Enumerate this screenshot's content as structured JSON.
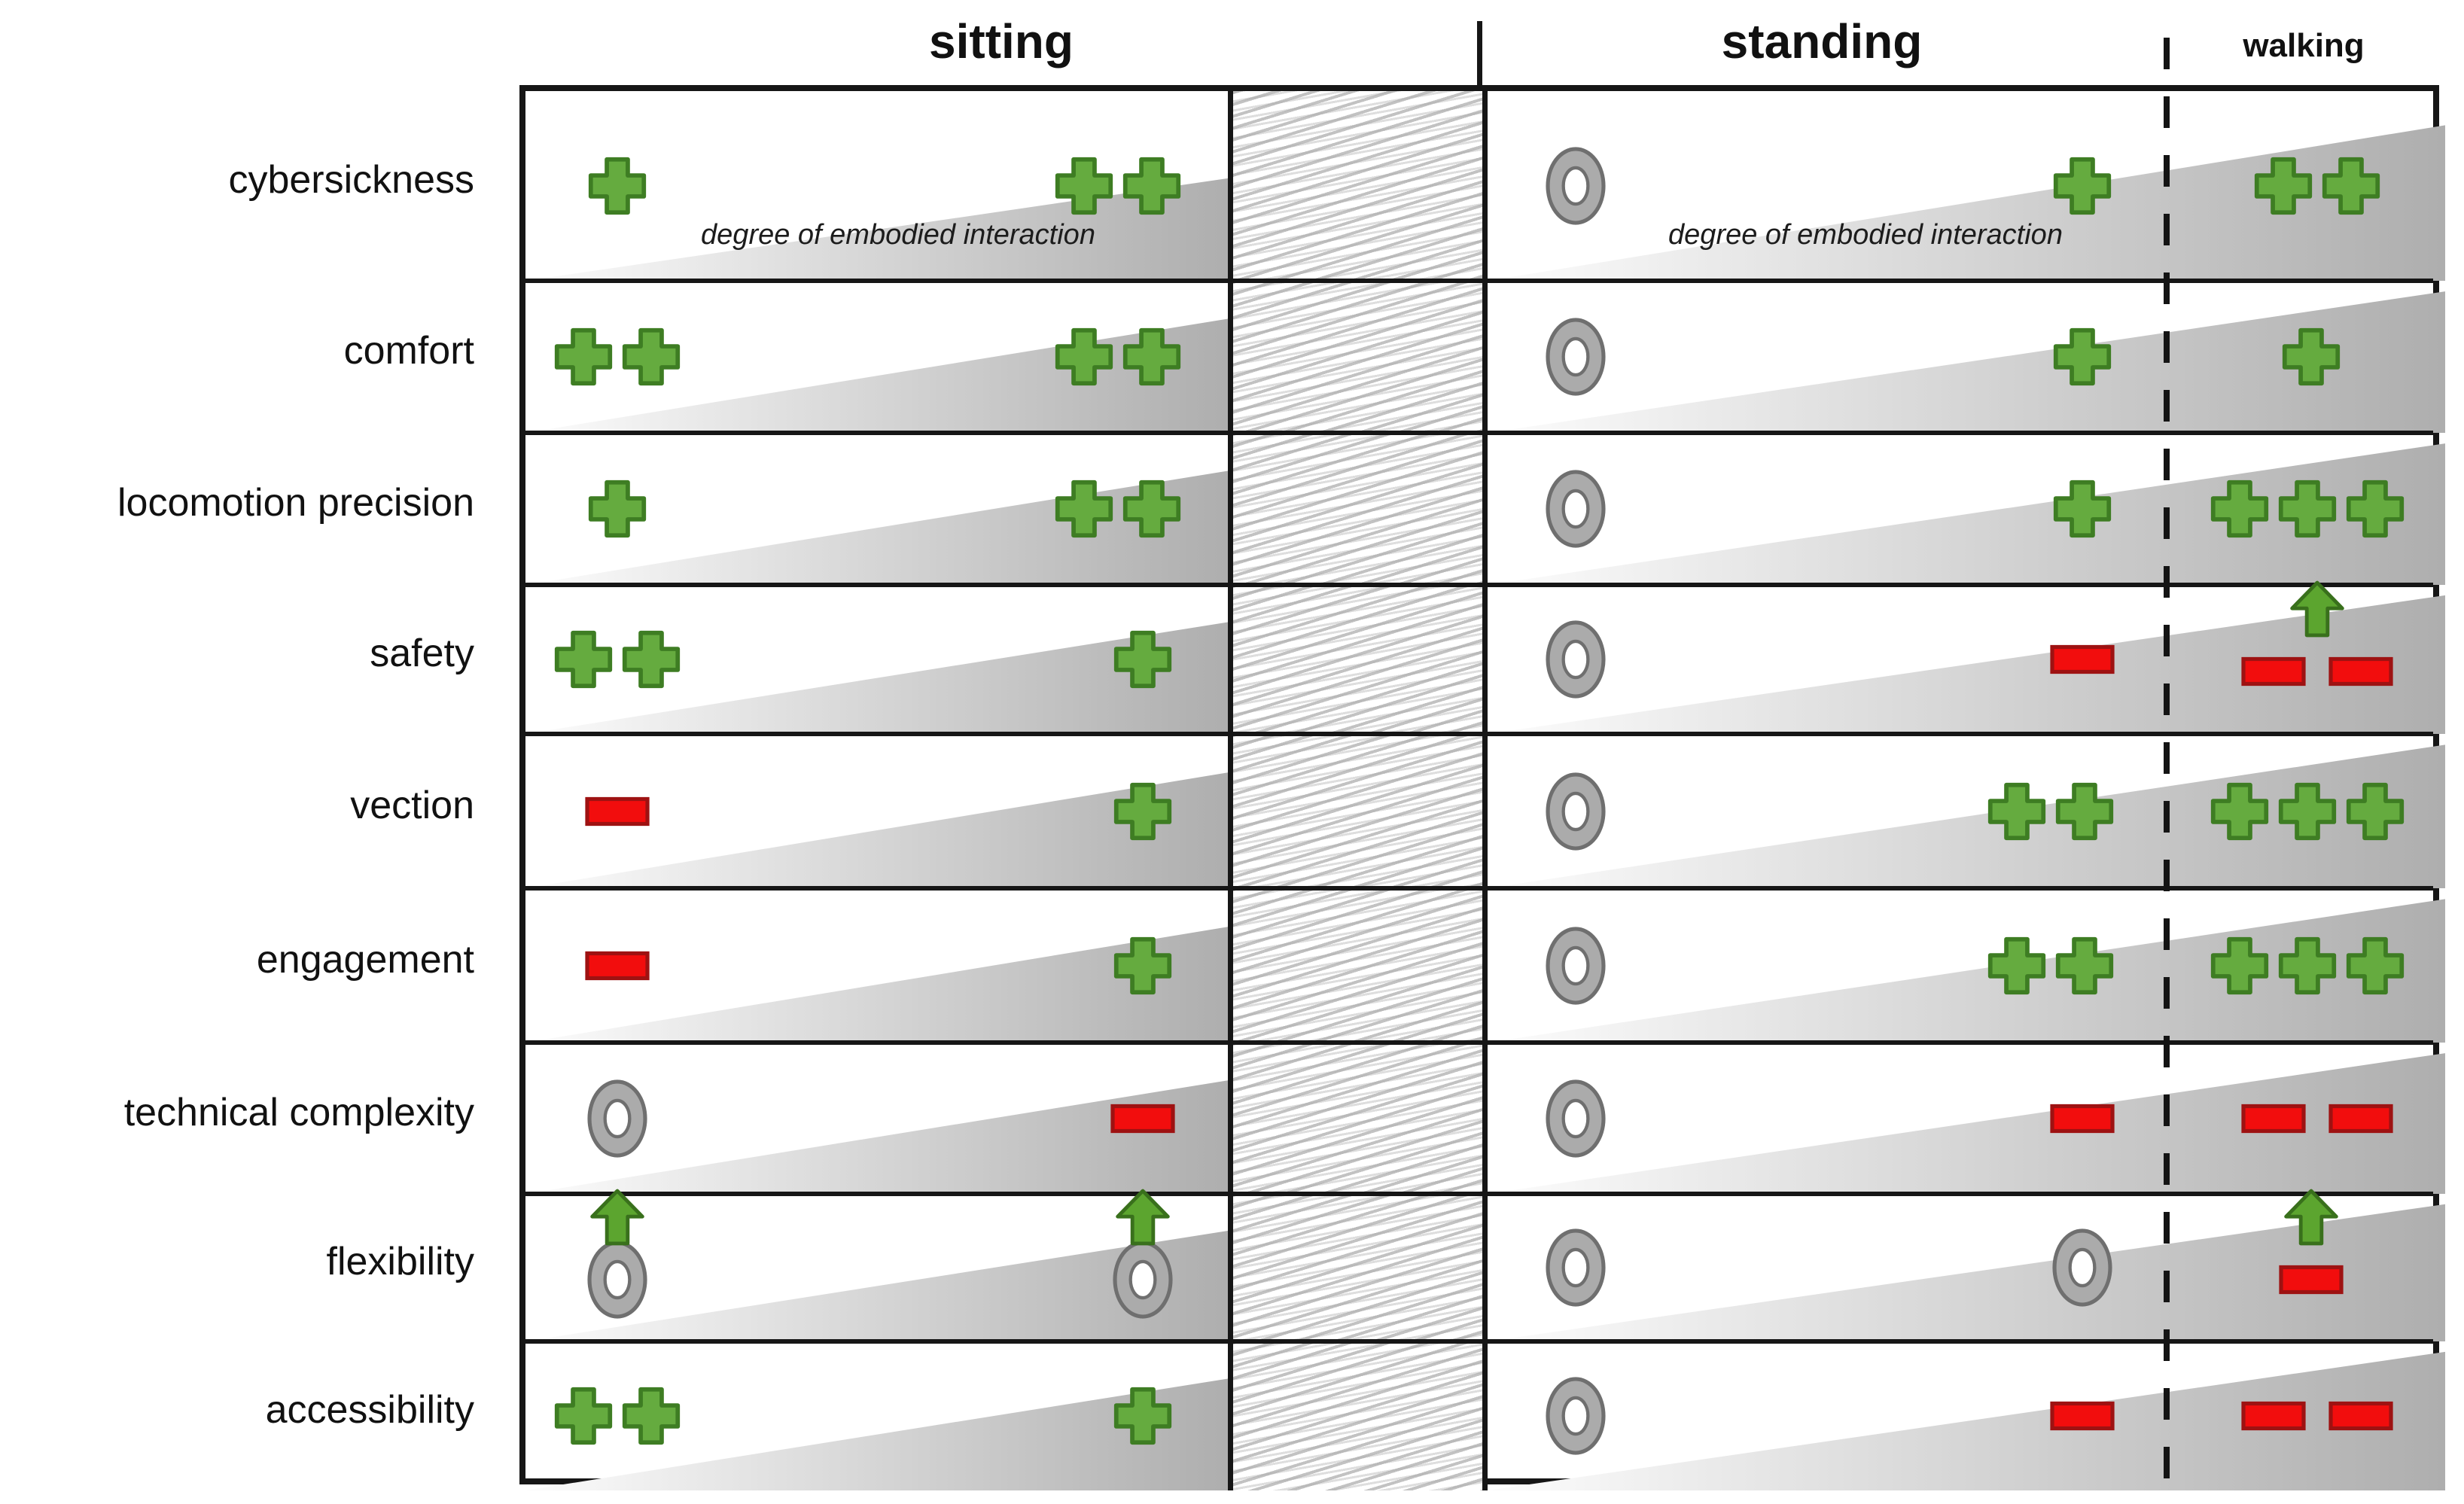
{
  "title_row": {
    "sitting": "sitting",
    "standing": "standing",
    "walking": "walking"
  },
  "axis_note": "degree of embodied interaction",
  "colors": {
    "plus_fill": "#65ab3f",
    "plus_stroke": "#3e7d23",
    "minus_fill": "#f20d0d",
    "minus_stroke": "#9e1212",
    "neutral_fill": "#ababab",
    "neutral_stroke": "#6f6f6f",
    "arrow_fill": "#5ca52f",
    "arrow_stroke": "#39701c",
    "wedge_dark": "#aeaeae",
    "grid": "#161616"
  },
  "rows": [
    {
      "label": "cybersickness",
      "show_axis_note": true,
      "sitting_left": {
        "items": [
          "plus"
        ]
      },
      "sitting_right": {
        "items": [
          "plus",
          "plus"
        ]
      },
      "standing_left": {
        "items": [
          "neutral"
        ]
      },
      "standing_mid": {
        "items": [
          "plus"
        ]
      },
      "walking": {
        "items": [
          "plus",
          "plus"
        ]
      }
    },
    {
      "label": "comfort",
      "sitting_left": {
        "items": [
          "plus",
          "plus"
        ]
      },
      "sitting_right": {
        "items": [
          "plus",
          "plus"
        ]
      },
      "standing_left": {
        "items": [
          "neutral"
        ]
      },
      "standing_mid": {
        "items": [
          "plus"
        ]
      },
      "walking": {
        "items": [
          "plus"
        ]
      }
    },
    {
      "label": "locomotion precision",
      "sitting_left": {
        "items": [
          "plus"
        ]
      },
      "sitting_right": {
        "items": [
          "plus",
          "plus"
        ]
      },
      "standing_left": {
        "items": [
          "neutral"
        ]
      },
      "standing_mid": {
        "items": [
          "plus"
        ]
      },
      "walking": {
        "items": [
          "plus",
          "plus",
          "plus"
        ]
      }
    },
    {
      "label": "safety",
      "sitting_left": {
        "items": [
          "plus",
          "plus"
        ]
      },
      "sitting_right": {
        "items": [
          "plus"
        ]
      },
      "standing_left": {
        "items": [
          "neutral"
        ]
      },
      "standing_mid": {
        "items": [
          "minus"
        ]
      },
      "walking": {
        "items": [
          "minus",
          "minus"
        ],
        "arrow": true
      }
    },
    {
      "label": "vection",
      "sitting_left": {
        "items": [
          "minus"
        ]
      },
      "sitting_right": {
        "items": [
          "plus"
        ]
      },
      "standing_left": {
        "items": [
          "neutral"
        ]
      },
      "standing_mid": {
        "items": [
          "plus",
          "plus"
        ]
      },
      "walking": {
        "items": [
          "plus",
          "plus",
          "plus"
        ]
      }
    },
    {
      "label": "engagement",
      "sitting_left": {
        "items": [
          "minus"
        ]
      },
      "sitting_right": {
        "items": [
          "plus"
        ]
      },
      "standing_left": {
        "items": [
          "neutral"
        ]
      },
      "standing_mid": {
        "items": [
          "plus",
          "plus"
        ]
      },
      "walking": {
        "items": [
          "plus",
          "plus",
          "plus"
        ]
      }
    },
    {
      "label": "technical complexity",
      "sitting_left": {
        "items": [
          "neutral"
        ]
      },
      "sitting_right": {
        "items": [
          "minus"
        ]
      },
      "standing_left": {
        "items": [
          "neutral"
        ]
      },
      "standing_mid": {
        "items": [
          "minus"
        ]
      },
      "walking": {
        "items": [
          "minus",
          "minus"
        ]
      }
    },
    {
      "label": "flexibility",
      "sitting_left": {
        "items": [
          "neutral"
        ],
        "arrow": true
      },
      "sitting_right": {
        "items": [
          "neutral"
        ],
        "arrow": true
      },
      "standing_left": {
        "items": [
          "neutral"
        ]
      },
      "standing_mid": {
        "items": [
          "neutral"
        ]
      },
      "walking": {
        "items": [
          "minus"
        ],
        "arrow": true
      }
    },
    {
      "label": "accessibility",
      "sitting_left": {
        "items": [
          "plus",
          "plus"
        ]
      },
      "sitting_right": {
        "items": [
          "plus"
        ]
      },
      "standing_left": {
        "items": [
          "neutral"
        ]
      },
      "standing_mid": {
        "items": [
          "minus"
        ]
      },
      "walking": {
        "items": [
          "minus",
          "minus"
        ]
      }
    }
  ]
}
